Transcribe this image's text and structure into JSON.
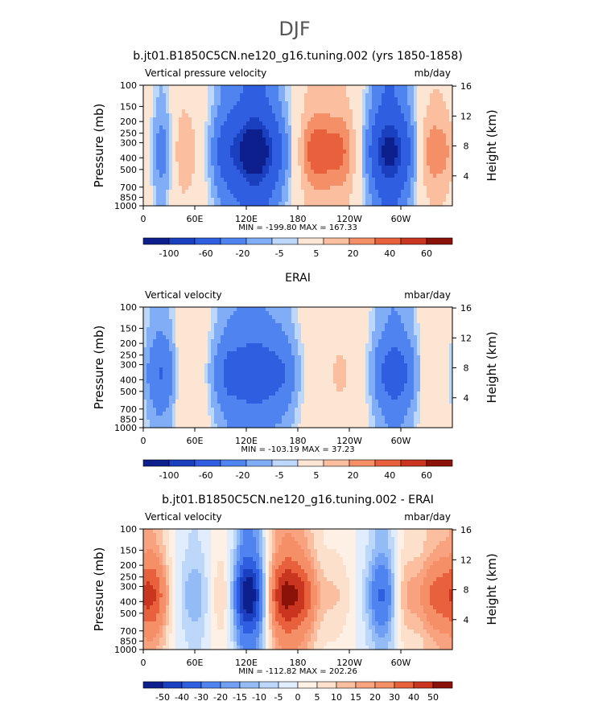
{
  "figure": {
    "title": "DJF",
    "colors": {
      "scale_12": [
        "#0d1f8c",
        "#1a3fbf",
        "#2f5fe0",
        "#4f83f0",
        "#80adf5",
        "#bdd7fa",
        "#fde5d4",
        "#fbbf9f",
        "#f58f67",
        "#e8603c",
        "#c9351f",
        "#8a1208"
      ],
      "scale_16": [
        "#0d1f8c",
        "#1a3fbf",
        "#2f5fe0",
        "#4f83f0",
        "#6f9ef3",
        "#93bcf7",
        "#bdd7fa",
        "#e1edfd",
        "#fef0e4",
        "#fde0cc",
        "#fbbf9f",
        "#f8a27f",
        "#f58f67",
        "#e8603c",
        "#c9351f",
        "#8a1208"
      ]
    },
    "panels": [
      {
        "title": "b.jt01.B1850C5CN.ne120_g16.tuning.002 (yrs 1850-1858)",
        "left_label": "Vertical pressure velocity",
        "right_label": "mb/day",
        "stats": "MIN = -199.80  MAX = 167.33",
        "colorbar_labels": [
          "-100",
          "-60",
          "-20",
          "-5",
          "5",
          "20",
          "40",
          "60"
        ],
        "colorbar_scale": "scale_12"
      },
      {
        "title": "ERAI",
        "left_label": "Vertical velocity",
        "right_label": "mbar/day",
        "stats": "MIN = -103.19  MAX =  37.23",
        "colorbar_labels": [
          "-100",
          "-60",
          "-20",
          "-5",
          "5",
          "20",
          "40",
          "60"
        ],
        "colorbar_scale": "scale_12"
      },
      {
        "title": "b.jt01.B1850C5CN.ne120_g16.tuning.002 - ERAI",
        "left_label": "Vertical velocity",
        "right_label": "mbar/day",
        "stats": "MIN = -112.82  MAX = 202.26",
        "colorbar_labels": [
          "-50",
          "-40",
          "-30",
          "-20",
          "-15",
          "-10",
          "-5",
          "0",
          "5",
          "10",
          "15",
          "20",
          "30",
          "40",
          "50"
        ],
        "colorbar_scale": "scale_16"
      }
    ]
  },
  "chart_data": [
    {
      "type": "heatmap",
      "title": "b.jt01.B1850C5CN.ne120_g16.tuning.002 (yrs 1850-1858)",
      "xlabel": "",
      "ylabel": "Pressure (mb)",
      "y2label": "Height (km)",
      "x_ticks": [
        "0",
        "60E",
        "120E",
        "180",
        "120W",
        "60W"
      ],
      "y_ticks": [
        "100",
        "150",
        "200",
        "250",
        "300",
        "400",
        "500",
        "700",
        "850",
        "1000"
      ],
      "y2_ticks": [
        "16",
        "12",
        "8",
        "4"
      ],
      "units": "mb/day",
      "min": -199.8,
      "max": 167.33,
      "levels": [
        -100,
        -80,
        -60,
        -40,
        -20,
        -10,
        -5,
        5,
        10,
        20,
        30,
        40,
        50,
        60
      ],
      "lon_peaks": [
        {
          "lon": 5,
          "value": 25
        },
        {
          "lon": 22,
          "value": -55
        },
        {
          "lon": 40,
          "value": 35
        },
        {
          "lon": 100,
          "value": -60
        },
        {
          "lon": 128,
          "value": -110
        },
        {
          "lon": 150,
          "value": -50
        },
        {
          "lon": 200,
          "value": 35
        },
        {
          "lon": 230,
          "value": 30
        },
        {
          "lon": 282,
          "value": -90
        },
        {
          "lon": 300,
          "value": -45
        },
        {
          "lon": 335,
          "value": 25
        }
      ]
    },
    {
      "type": "heatmap",
      "title": "ERAI",
      "xlabel": "",
      "ylabel": "Pressure (mb)",
      "y2label": "Height (km)",
      "x_ticks": [
        "0",
        "60E",
        "120E",
        "180",
        "120W",
        "60W"
      ],
      "y_ticks": [
        "100",
        "150",
        "200",
        "250",
        "300",
        "400",
        "500",
        "700",
        "850",
        "1000"
      ],
      "y2_ticks": [
        "16",
        "12",
        "8",
        "4"
      ],
      "units": "mbar/day",
      "min": -103.19,
      "max": 37.23,
      "levels": [
        -100,
        -80,
        -60,
        -40,
        -20,
        -10,
        -5,
        5,
        10,
        20,
        30,
        40,
        50,
        60
      ],
      "lon_peaks": [
        {
          "lon": 22,
          "value": -45
        },
        {
          "lon": 45,
          "value": 15
        },
        {
          "lon": 100,
          "value": -45
        },
        {
          "lon": 130,
          "value": -55
        },
        {
          "lon": 160,
          "value": -40
        },
        {
          "lon": 230,
          "value": 12
        },
        {
          "lon": 285,
          "value": -40
        },
        {
          "lon": 305,
          "value": -30
        },
        {
          "lon": 335,
          "value": 10
        }
      ]
    },
    {
      "type": "heatmap",
      "title": "b.jt01.B1850C5CN.ne120_g16.tuning.002 - ERAI",
      "xlabel": "",
      "ylabel": "Pressure (mb)",
      "y2label": "Height (km)",
      "x_ticks": [
        "0",
        "60E",
        "120E",
        "180",
        "120W",
        "60W"
      ],
      "y_ticks": [
        "100",
        "150",
        "200",
        "250",
        "300",
        "400",
        "500",
        "700",
        "850",
        "1000"
      ],
      "y2_ticks": [
        "16",
        "12",
        "8",
        "4"
      ],
      "units": "mbar/day",
      "min": -112.82,
      "max": 202.26,
      "levels": [
        -50,
        -40,
        -30,
        -20,
        -15,
        -10,
        -5,
        0,
        5,
        10,
        15,
        20,
        30,
        40,
        50
      ],
      "lon_peaks": [
        {
          "lon": 10,
          "value": 40
        },
        {
          "lon": 60,
          "value": -15
        },
        {
          "lon": 100,
          "value": 25
        },
        {
          "lon": 115,
          "value": -40
        },
        {
          "lon": 128,
          "value": -35
        },
        {
          "lon": 160,
          "value": 45
        },
        {
          "lon": 185,
          "value": 35
        },
        {
          "lon": 225,
          "value": 10
        },
        {
          "lon": 282,
          "value": -40
        },
        {
          "lon": 300,
          "value": 25
        },
        {
          "lon": 340,
          "value": 30
        }
      ]
    }
  ]
}
